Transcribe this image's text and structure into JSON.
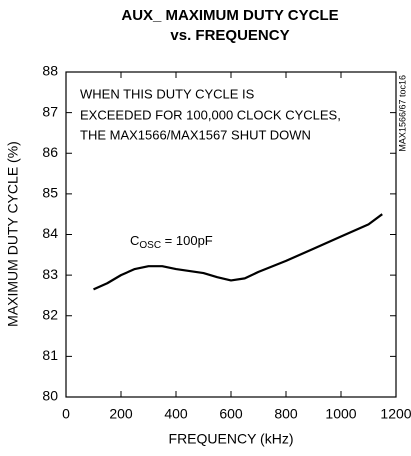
{
  "chart_data": {
    "type": "line",
    "title": "AUX_ MAXIMUM DUTY CYCLE",
    "subtitle": "vs. FREQUENCY",
    "x_label": "FREQUENCY (kHz)",
    "y_label": "MAXIMUM DUTY CYCLE (%)",
    "annotations": [
      "WHEN THIS DUTY CYCLE IS",
      "EXCEEDED FOR 100,000 CLOCK CYCLES,",
      "THE MAX1566/MAX1567 SHUT DOWN"
    ],
    "side_label": "MAX1566/67 toc16",
    "curve_label": {
      "main": "C",
      "sub": "OSC",
      "rest": " = 100pF"
    },
    "x": [
      100,
      150,
      200,
      250,
      300,
      350,
      400,
      450,
      500,
      550,
      600,
      650,
      700,
      800,
      900,
      1000,
      1100,
      1150
    ],
    "series": [
      {
        "name": "COSC = 100pF",
        "color": "#000000",
        "values": [
          82.65,
          82.8,
          83.0,
          83.15,
          83.22,
          83.22,
          83.15,
          83.1,
          83.05,
          82.95,
          82.87,
          82.92,
          83.08,
          83.35,
          83.65,
          83.95,
          84.25,
          84.5
        ]
      }
    ],
    "xlim": [
      0,
      1200
    ],
    "ylim": [
      80,
      88
    ],
    "xticks": [
      0,
      200,
      400,
      600,
      800,
      1000,
      1200
    ],
    "yticks": [
      80,
      81,
      82,
      83,
      84,
      85,
      86,
      87,
      88
    ]
  }
}
